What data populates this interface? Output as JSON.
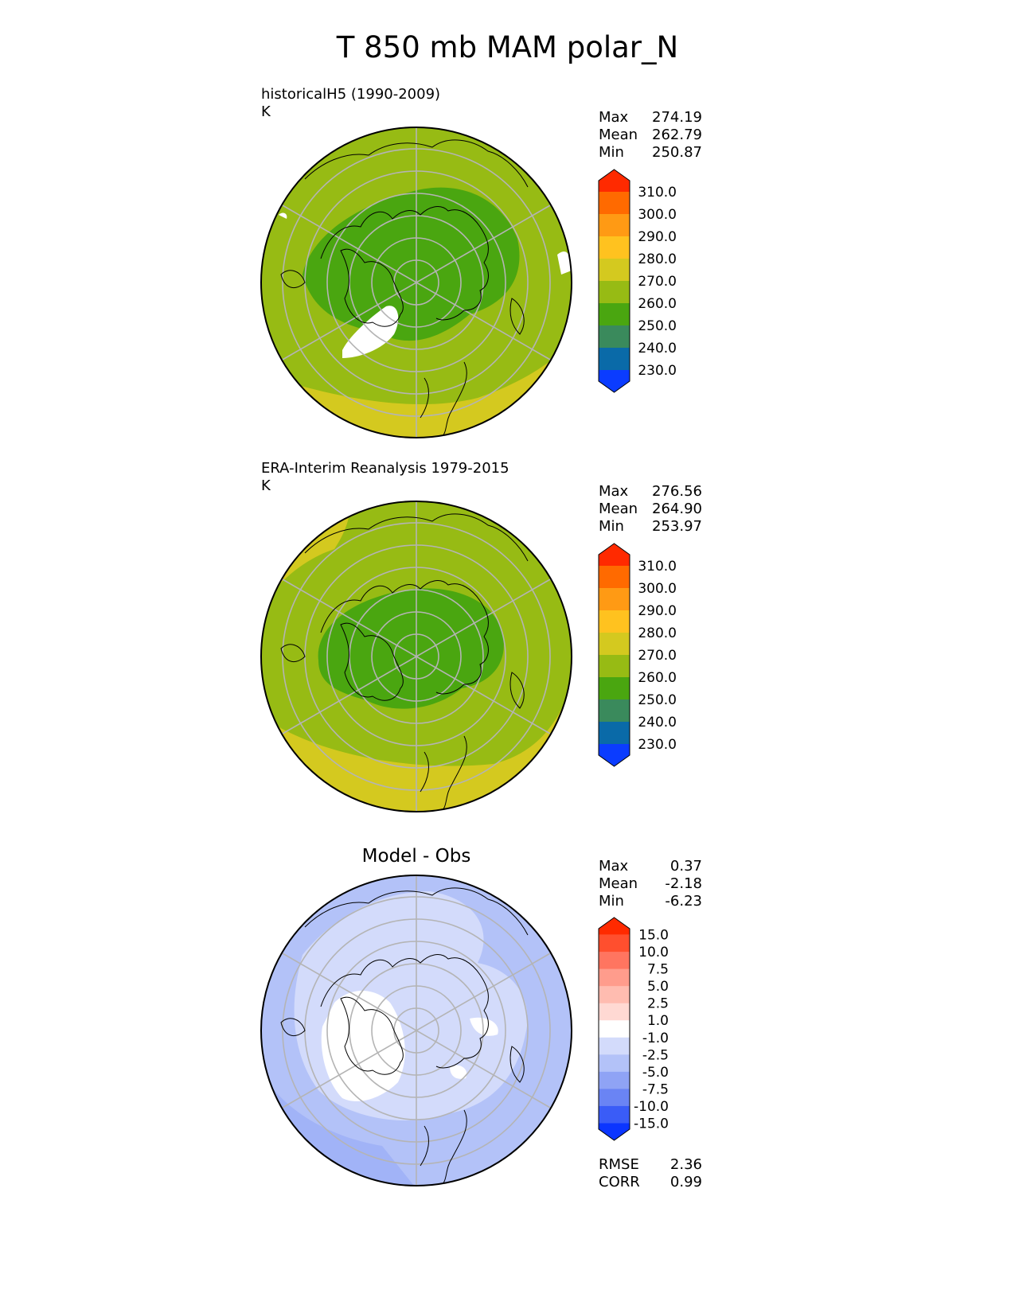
{
  "title": "T 850 mb MAM polar_N",
  "panels": [
    {
      "id": "model",
      "label_line1": "historicalH5 (1990-2009)",
      "label_line2": "K",
      "stats": [
        {
          "name": "Max",
          "value": "274.19"
        },
        {
          "name": "Mean",
          "value": "262.79"
        },
        {
          "name": "Min",
          "value": "250.87"
        }
      ]
    },
    {
      "id": "obs",
      "label_line1": "ERA-Interim Reanalysis 1979-2015",
      "label_line2": "K",
      "stats": [
        {
          "name": "Max",
          "value": "276.56"
        },
        {
          "name": "Mean",
          "value": "264.90"
        },
        {
          "name": "Min",
          "value": "253.97"
        }
      ]
    },
    {
      "id": "diff",
      "title": "Model - Obs",
      "stats": [
        {
          "name": "Max",
          "value": "0.37"
        },
        {
          "name": "Mean",
          "value": "-2.18"
        },
        {
          "name": "Min",
          "value": "-6.23"
        }
      ],
      "metrics": [
        {
          "name": "RMSE",
          "value": "2.36"
        },
        {
          "name": "CORR",
          "value": "0.99"
        }
      ]
    }
  ],
  "colorbar_abs": {
    "ticks": [
      "310.0",
      "300.0",
      "290.0",
      "280.0",
      "270.0",
      "260.0",
      "250.0",
      "240.0",
      "230.0"
    ],
    "colors": [
      "#ff2a00",
      "#ff6a00",
      "#ff9a14",
      "#ffc21f",
      "#d4c91f",
      "#97bb14",
      "#4aa610",
      "#3a8a5c",
      "#0a6aa8",
      "#0b3cff"
    ]
  },
  "colorbar_diff": {
    "ticks": [
      "15.0",
      "10.0",
      "7.5",
      "5.0",
      "2.5",
      "1.0",
      "-1.0",
      "-2.5",
      "-5.0",
      "-7.5",
      "-10.0",
      "-15.0"
    ],
    "colors": [
      "#ff2a00",
      "#ff4f2e",
      "#ff7560",
      "#ff9c8c",
      "#ffbcb0",
      "#ffd9d3",
      "#ffffff",
      "#d3dbfb",
      "#b3c2f8",
      "#8fa3f5",
      "#6a84f4",
      "#3a5cf7",
      "#0b35ff"
    ]
  }
}
